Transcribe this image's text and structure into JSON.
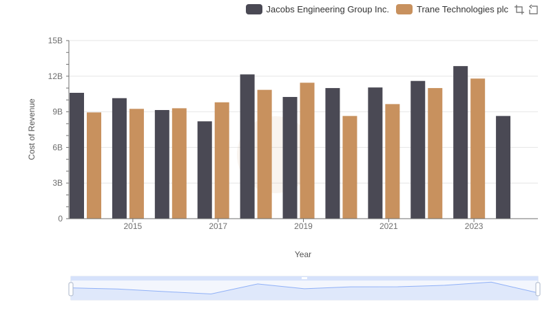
{
  "colors": {
    "jacobs": "#4a4954",
    "trane": "#c8915e",
    "grid": "#e6e6e6",
    "axis": "#6e6e6e",
    "zoom_fill": "#dfe8fb",
    "zoom_line": "#8fb0f7"
  },
  "legend": [
    {
      "label": "Jacobs Engineering Group Inc.",
      "color": "#4a4954"
    },
    {
      "label": "Trane Technologies plc",
      "color": "#c8915e"
    }
  ],
  "toolbox": {
    "zoom_icon": "zoom-icon",
    "restore_icon": "restore-icon"
  },
  "chart_data": {
    "type": "bar",
    "title": "",
    "xlabel": "Year",
    "ylabel": "Cost of Revenue",
    "ylim": [
      0,
      15
    ],
    "y_unit": "B",
    "y_ticks": [
      "0",
      "3B",
      "6B",
      "9B",
      "12B",
      "15B"
    ],
    "x_tick_labels": [
      "2015",
      "2017",
      "2019",
      "2021",
      "2023"
    ],
    "categories": [
      "2014",
      "2015",
      "2016",
      "2017",
      "2018",
      "2019",
      "2020",
      "2021",
      "2022",
      "2023",
      "2024"
    ],
    "series": [
      {
        "name": "Jacobs Engineering Group Inc.",
        "values": [
          10.6,
          10.15,
          9.15,
          8.2,
          12.15,
          10.25,
          11.0,
          11.05,
          11.6,
          12.85,
          8.65
        ]
      },
      {
        "name": "Trane Technologies plc",
        "values": [
          8.95,
          9.25,
          9.3,
          9.8,
          10.85,
          11.45,
          8.65,
          9.65,
          11.0,
          11.8,
          null
        ]
      }
    ]
  }
}
